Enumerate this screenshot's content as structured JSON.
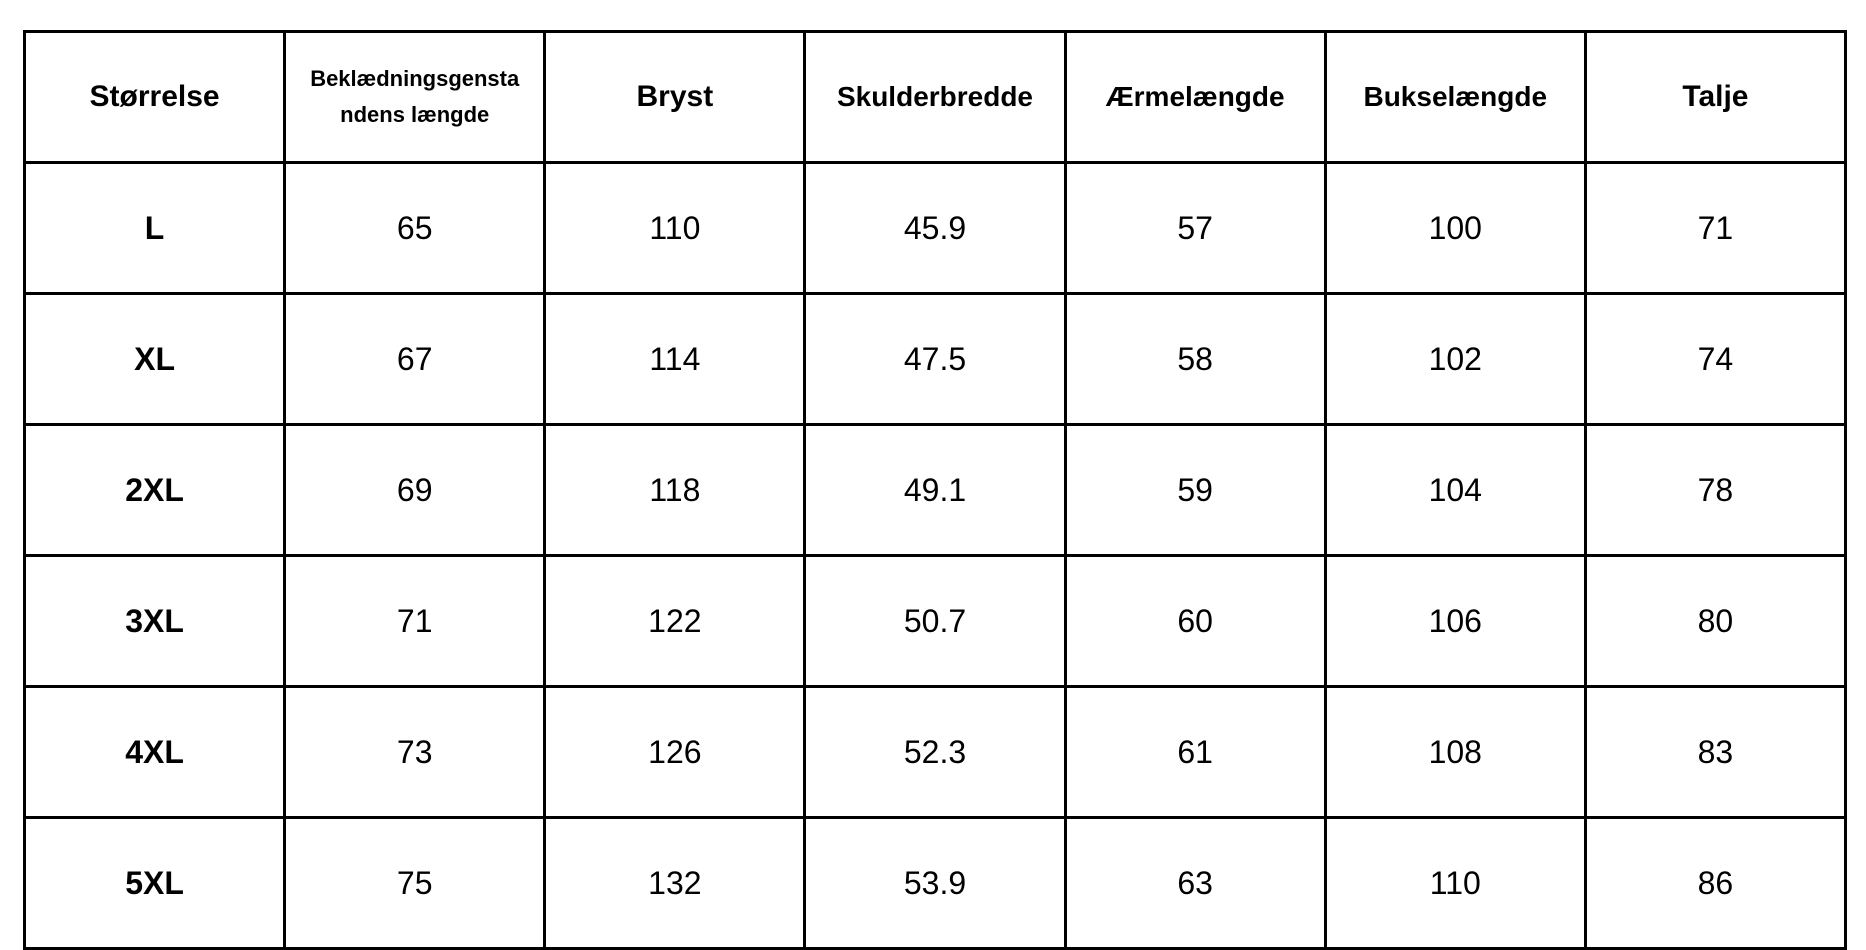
{
  "table": {
    "header": [
      "Størrelse",
      "Beklædningsgenstandens længde",
      "Bryst",
      "Skulderbredde",
      "Ærmelængde",
      "Bukselængde",
      "Talje"
    ],
    "rows": [
      [
        "L",
        "65",
        "110",
        "45.9",
        "57",
        "100",
        "71"
      ],
      [
        "XL",
        "67",
        "114",
        "47.5",
        "58",
        "102",
        "74"
      ],
      [
        "2XL",
        "69",
        "118",
        "49.1",
        "59",
        "104",
        "78"
      ],
      [
        "3XL",
        "71",
        "122",
        "50.7",
        "60",
        "106",
        "80"
      ],
      [
        "4XL",
        "73",
        "126",
        "52.3",
        "61",
        "108",
        "83"
      ],
      [
        "5XL",
        "75",
        "132",
        "53.9",
        "63",
        "110",
        "86"
      ]
    ]
  }
}
